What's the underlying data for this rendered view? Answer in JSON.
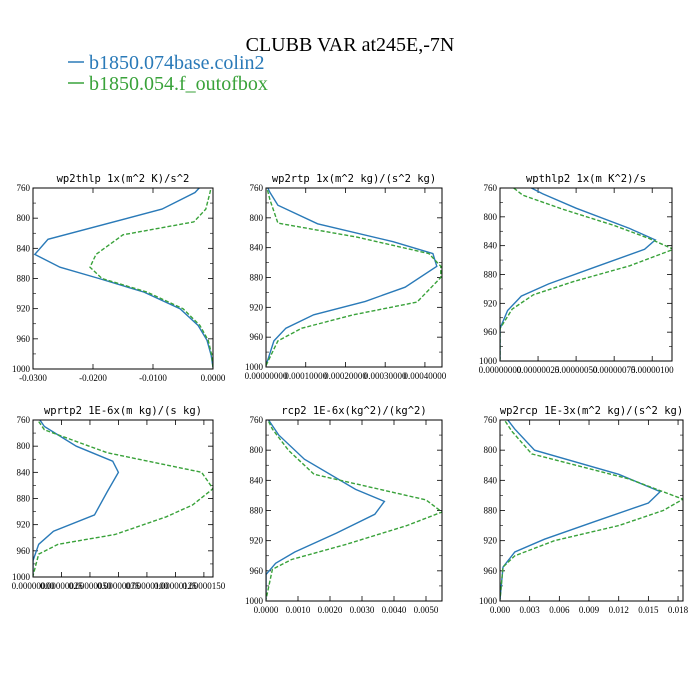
{
  "figure": {
    "title": "CLUBB VAR at245E,-7N",
    "legend": [
      {
        "label": "b1850.074base.colin2",
        "color": "#2a7ab8"
      },
      {
        "label": "b1850.054.f_outofbox",
        "color": "#39a23a"
      }
    ]
  },
  "chart_data": [
    {
      "type": "line",
      "title": "wp2thlp  1x(m^2 K)/s^2",
      "xlim": [
        -0.03,
        0.0
      ],
      "ylim": [
        760,
        1000
      ],
      "y_inverted": true,
      "xticks": [
        -0.03,
        -0.02,
        -0.01,
        0.0
      ],
      "xtick_labels": [
        "-0.0300",
        "-0.0200",
        "-0.0100",
        "0.0000"
      ],
      "yticks": [
        760,
        800,
        840,
        880,
        920,
        960,
        1000
      ],
      "series": [
        {
          "name": "b1850.074base.colin2",
          "style": "solid",
          "color": "#2a7ab8",
          "points": [
            [
              -0.0017,
              755
            ],
            [
              -0.003,
              766
            ],
            [
              -0.0085,
              788
            ],
            [
              -0.0275,
              828
            ],
            [
              -0.0297,
              848
            ],
            [
              -0.0255,
              865
            ],
            [
              -0.019,
              880
            ],
            [
              -0.0115,
              898
            ],
            [
              -0.0055,
              920
            ],
            [
              -0.0025,
              942
            ],
            [
              -0.001,
              962
            ],
            [
              -0.0003,
              982
            ],
            [
              0.0,
              998
            ]
          ]
        },
        {
          "name": "b1850.054.f_outofbox",
          "style": "dashed",
          "color": "#39a23a",
          "points": [
            [
              -0.0002,
              755
            ],
            [
              -0.0005,
              766
            ],
            [
              -0.0012,
              788
            ],
            [
              -0.0032,
              805
            ],
            [
              -0.015,
              822
            ],
            [
              -0.0195,
              848
            ],
            [
              -0.0205,
              865
            ],
            [
              -0.0185,
              880
            ],
            [
              -0.011,
              898
            ],
            [
              -0.005,
              920
            ],
            [
              -0.0022,
              942
            ],
            [
              -0.0008,
              962
            ],
            [
              -0.0002,
              982
            ],
            [
              0.0,
              998
            ]
          ]
        }
      ]
    },
    {
      "type": "line",
      "title": "wp2rtp  1x(m^2 kg)/(s^2 kg)",
      "xlim": [
        0.0,
        0.000443
      ],
      "ylim": [
        760,
        1000
      ],
      "y_inverted": true,
      "xticks": [
        0.0,
        0.0001,
        0.0002,
        0.0003,
        0.0004
      ],
      "xtick_labels": [
        "0.00000000",
        "0.00010000",
        "0.00020000",
        "0.00030000",
        "0.00040000"
      ],
      "yticks": [
        760,
        800,
        840,
        880,
        920,
        960,
        1000
      ],
      "series": [
        {
          "name": "b1850.074base.colin2",
          "style": "solid",
          "color": "#2a7ab8",
          "points": [
            [
              0.0,
              755
            ],
            [
              1e-05,
              766
            ],
            [
              3e-05,
              783
            ],
            [
              0.00013,
              808
            ],
            [
              0.00032,
              832
            ],
            [
              0.00042,
              848
            ],
            [
              0.00043,
              865
            ],
            [
              0.00035,
              893
            ],
            [
              0.00025,
              912
            ],
            [
              0.00012,
              930
            ],
            [
              5e-05,
              948
            ],
            [
              2e-05,
              965
            ],
            [
              0.0,
              998
            ]
          ]
        },
        {
          "name": "b1850.054.f_outofbox",
          "style": "dashed",
          "color": "#39a23a",
          "points": [
            [
              0.0,
              755
            ],
            [
              1e-05,
              776
            ],
            [
              3e-05,
              807
            ],
            [
              0.00023,
              826
            ],
            [
              0.00041,
              848
            ],
            [
              0.00044,
              865
            ],
            [
              0.00044,
              880
            ],
            [
              0.00038,
              913
            ],
            [
              0.00022,
              930
            ],
            [
              9e-05,
              948
            ],
            [
              3e-05,
              965
            ],
            [
              0.0,
              998
            ]
          ]
        }
      ]
    },
    {
      "type": "line",
      "title": "wpthlp2  1x(m K^2)/s",
      "xlim": [
        0.0,
        1.13e-06
      ],
      "ylim": [
        760,
        1000
      ],
      "y_inverted": true,
      "xticks": [
        0.0,
        2.5e-07,
        5e-07,
        7.5e-07,
        1e-06
      ],
      "xtick_labels": [
        "0.00000000",
        "0.00000025",
        "0.00000050",
        "0.00000075",
        "0.00000100"
      ],
      "yticks": [
        760,
        800,
        840,
        880,
        920,
        960,
        1000
      ],
      "series": [
        {
          "name": "b1850.074base.colin2",
          "style": "solid",
          "color": "#2a7ab8",
          "points": [
            [
              1.6e-07,
              755
            ],
            [
              2.8e-07,
              768
            ],
            [
              5e-07,
              788
            ],
            [
              8.5e-07,
              816
            ],
            [
              1.02e-06,
              832
            ],
            [
              9.5e-07,
              845
            ],
            [
              6.2e-07,
              870
            ],
            [
              3.2e-07,
              893
            ],
            [
              1.4e-07,
              910
            ],
            [
              5e-08,
              930
            ],
            [
              0.0,
              955
            ],
            [
              0.0,
              998
            ]
          ]
        },
        {
          "name": "b1850.054.f_outofbox",
          "style": "dashed",
          "color": "#39a23a",
          "points": [
            [
              6e-08,
              755
            ],
            [
              1.5e-07,
              770
            ],
            [
              4.2e-07,
              790
            ],
            [
              7.5e-07,
              812
            ],
            [
              9.8e-07,
              830
            ],
            [
              1.14e-06,
              845
            ],
            [
              8.5e-07,
              868
            ],
            [
              4.8e-07,
              890
            ],
            [
              2.2e-07,
              908
            ],
            [
              8e-08,
              928
            ],
            [
              0.0,
              955
            ],
            [
              0.0,
              998
            ]
          ]
        }
      ]
    },
    {
      "type": "line",
      "title": "wprtp2  1E-6x(m kg)/(s kg)",
      "xlim": [
        0.0,
        1.58e-06
      ],
      "ylim": [
        760,
        1000
      ],
      "y_inverted": true,
      "xticks": [
        0.0,
        2.5e-07,
        5e-07,
        7.5e-07,
        1e-06,
        1.25e-06,
        1.5e-06
      ],
      "xtick_labels": [
        "0.00000000",
        "0.00000025",
        "0.00000050",
        "0.00000075",
        "0.00000100",
        "0.00000125",
        "0.00000150"
      ],
      "yticks": [
        760,
        800,
        840,
        880,
        920,
        960,
        1000
      ],
      "series": [
        {
          "name": "b1850.074base.colin2",
          "style": "solid",
          "color": "#2a7ab8",
          "points": [
            [
              4e-08,
              755
            ],
            [
              1e-07,
              770
            ],
            [
              3.8e-07,
              800
            ],
            [
              7e-07,
              823
            ],
            [
              7.5e-07,
              840
            ],
            [
              6.5e-07,
              870
            ],
            [
              5.4e-07,
              905
            ],
            [
              1.8e-07,
              930
            ],
            [
              5e-08,
              950
            ],
            [
              0.0,
              975
            ],
            [
              0.0,
              998
            ]
          ]
        },
        {
          "name": "b1850.054.f_outofbox",
          "style": "dashed",
          "color": "#39a23a",
          "points": [
            [
              2e-08,
              755
            ],
            [
              1e-07,
              775
            ],
            [
              6.5e-07,
              810
            ],
            [
              1.48e-06,
              840
            ],
            [
              1.58e-06,
              865
            ],
            [
              1.4e-06,
              890
            ],
            [
              1.17e-06,
              908
            ],
            [
              7.2e-07,
              935
            ],
            [
              2.2e-07,
              950
            ],
            [
              5e-08,
              965
            ],
            [
              0.0,
              998
            ]
          ]
        }
      ]
    },
    {
      "type": "line",
      "title": "rcp2  1E-6x(kg^2)/(kg^2)",
      "xlim": [
        0.0,
        0.0055
      ],
      "ylim": [
        760,
        1000
      ],
      "y_inverted": true,
      "xticks": [
        0.0,
        0.001,
        0.002,
        0.003,
        0.004,
        0.005
      ],
      "xtick_labels": [
        "0.0000",
        "0.0010",
        "0.0020",
        "0.0030",
        "0.0040",
        "0.0050"
      ],
      "yticks": [
        760,
        800,
        840,
        880,
        920,
        960,
        1000
      ],
      "series": [
        {
          "name": "b1850.074base.colin2",
          "style": "solid",
          "color": "#2a7ab8",
          "points": [
            [
              0.0,
              755
            ],
            [
              0.0004,
              780
            ],
            [
              0.0012,
              812
            ],
            [
              0.0028,
              852
            ],
            [
              0.0037,
              868
            ],
            [
              0.0034,
              885
            ],
            [
              0.0022,
              910
            ],
            [
              0.0009,
              935
            ],
            [
              0.0003,
              950
            ],
            [
              0.0,
              965
            ],
            [
              0.0,
              998
            ]
          ]
        },
        {
          "name": "b1850.054.f_outofbox",
          "style": "dashed",
          "color": "#39a23a",
          "points": [
            [
              0.0,
              755
            ],
            [
              0.0002,
              772
            ],
            [
              0.0007,
              800
            ],
            [
              0.0015,
              832
            ],
            [
              0.005,
              866
            ],
            [
              0.0055,
              882
            ],
            [
              0.0044,
              900
            ],
            [
              0.0025,
              925
            ],
            [
              0.0008,
              945
            ],
            [
              0.0002,
              958
            ],
            [
              0.0,
              998
            ]
          ]
        }
      ]
    },
    {
      "type": "line",
      "title": "wp2rcp  1E-3x(m^2 kg)/(s^2 kg)",
      "xlim": [
        0.0,
        0.0185
      ],
      "ylim": [
        760,
        1000
      ],
      "y_inverted": true,
      "xticks": [
        0.0,
        0.003,
        0.006,
        0.009,
        0.012,
        0.015,
        0.018
      ],
      "xtick_labels": [
        "0.000",
        "0.003",
        "0.006",
        "0.009",
        "0.012",
        "0.015",
        "0.018"
      ],
      "yticks": [
        760,
        800,
        840,
        880,
        920,
        960,
        1000
      ],
      "series": [
        {
          "name": "b1850.074base.colin2",
          "style": "solid",
          "color": "#2a7ab8",
          "points": [
            [
              0.0005,
              755
            ],
            [
              0.0015,
              772
            ],
            [
              0.0035,
              800
            ],
            [
              0.012,
              832
            ],
            [
              0.0162,
              855
            ],
            [
              0.015,
              870
            ],
            [
              0.0095,
              895
            ],
            [
              0.0045,
              918
            ],
            [
              0.0015,
              935
            ],
            [
              0.0003,
              955
            ],
            [
              0.0,
              998
            ]
          ]
        },
        {
          "name": "b1850.054.f_outofbox",
          "style": "dashed",
          "color": "#39a23a",
          "points": [
            [
              0.0002,
              755
            ],
            [
              0.0012,
              775
            ],
            [
              0.0032,
              805
            ],
            [
              0.013,
              838
            ],
            [
              0.0185,
              865
            ],
            [
              0.0165,
              880
            ],
            [
              0.012,
              900
            ],
            [
              0.0055,
              920
            ],
            [
              0.0015,
              940
            ],
            [
              0.0003,
              955
            ],
            [
              0.0,
              998
            ]
          ]
        }
      ]
    }
  ]
}
